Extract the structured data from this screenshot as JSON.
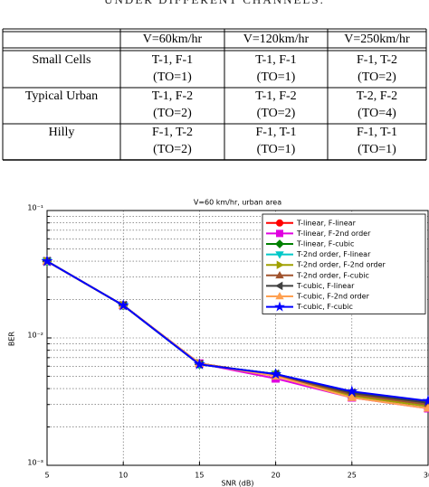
{
  "caption": "UNDER DIFFERENT CHANNELS.",
  "table": {
    "header": [
      "V=60km/hr",
      "V=120km/hr",
      "V=250km/hr"
    ],
    "rows": [
      {
        "label": "Small Cells",
        "cells": [
          [
            "T-1, F-1",
            "(TO=1)"
          ],
          [
            "T-1, F-1",
            "(TO=1)"
          ],
          [
            "F-1, T-2",
            "(TO=2)"
          ]
        ]
      },
      {
        "label": "Typical Urban",
        "cells": [
          [
            "T-1, F-2",
            "(TO=2)"
          ],
          [
            "T-1, F-2",
            "(TO=2)"
          ],
          [
            "T-2, F-2",
            "(TO=4)"
          ]
        ]
      },
      {
        "label": "Hilly",
        "cells": [
          [
            "F-1, T-2",
            "(TO=2)"
          ],
          [
            "F-1, T-1",
            "(TO=1)"
          ],
          [
            "F-1, T-1",
            "(TO=1)"
          ]
        ]
      }
    ]
  },
  "chart_data": {
    "type": "line",
    "title": "V=60 km/hr, urban area",
    "x_label": "SNR (dB)",
    "y_label": "BER",
    "x": [
      5,
      10,
      15,
      20,
      25,
      30
    ],
    "xlim": [
      5,
      30
    ],
    "xticks": [
      5,
      10,
      15,
      20,
      25,
      30
    ],
    "ylim": [
      0.001,
      0.1
    ],
    "log_y": true,
    "yticks": [
      {
        "value": 0.001,
        "label": "10⁻³"
      },
      {
        "value": 0.01,
        "label": "10⁻²"
      },
      {
        "value": 0.1,
        "label": "10⁻¹"
      }
    ],
    "yticks_minor": [
      0.002,
      0.003,
      0.004,
      0.005,
      0.006,
      0.007,
      0.008,
      0.009,
      0.02,
      0.03,
      0.04,
      0.05,
      0.06,
      0.07,
      0.08,
      0.09
    ],
    "grid": true,
    "legend": "upper right",
    "series": [
      {
        "name": "T-linear, F-linear",
        "color": "#ff0000",
        "marker": "circle",
        "values": [
          0.04,
          0.018,
          0.0063,
          0.0051,
          0.0037,
          0.0031
        ]
      },
      {
        "name": "T-linear, F-2nd order",
        "color": "#e000e0",
        "marker": "square",
        "values": [
          0.04,
          0.018,
          0.0063,
          0.0048,
          0.0034,
          0.0028
        ]
      },
      {
        "name": "T-linear, F-cubic",
        "color": "#008000",
        "marker": "diamond",
        "values": [
          0.04,
          0.018,
          0.0062,
          0.0052,
          0.0037,
          0.0031
        ]
      },
      {
        "name": "T-2nd order, F-linear",
        "color": "#00c8c8",
        "marker": "down",
        "values": [
          0.04,
          0.018,
          0.0062,
          0.0052,
          0.0036,
          0.003
        ]
      },
      {
        "name": "T-2nd order, F-2nd order",
        "color": "#a0a000",
        "marker": "right",
        "values": [
          0.04,
          0.018,
          0.0063,
          0.0051,
          0.0035,
          0.0029
        ]
      },
      {
        "name": "T-2nd order, F-cubic",
        "color": "#a0522d",
        "marker": "up",
        "values": [
          0.04,
          0.018,
          0.0063,
          0.0051,
          0.0036,
          0.003
        ]
      },
      {
        "name": "T-cubic, F-linear",
        "color": "#404040",
        "marker": "left",
        "values": [
          0.04,
          0.018,
          0.0062,
          0.0052,
          0.0037,
          0.0031
        ]
      },
      {
        "name": "T-cubic, F-2nd order",
        "color": "#ffa050",
        "marker": "up",
        "values": [
          0.04,
          0.018,
          0.0063,
          0.005,
          0.0034,
          0.0028
        ]
      },
      {
        "name": "T-cubic, F-cubic",
        "color": "#0000ff",
        "marker": "star",
        "values": [
          0.04,
          0.018,
          0.0062,
          0.0052,
          0.0038,
          0.0032
        ]
      }
    ]
  }
}
